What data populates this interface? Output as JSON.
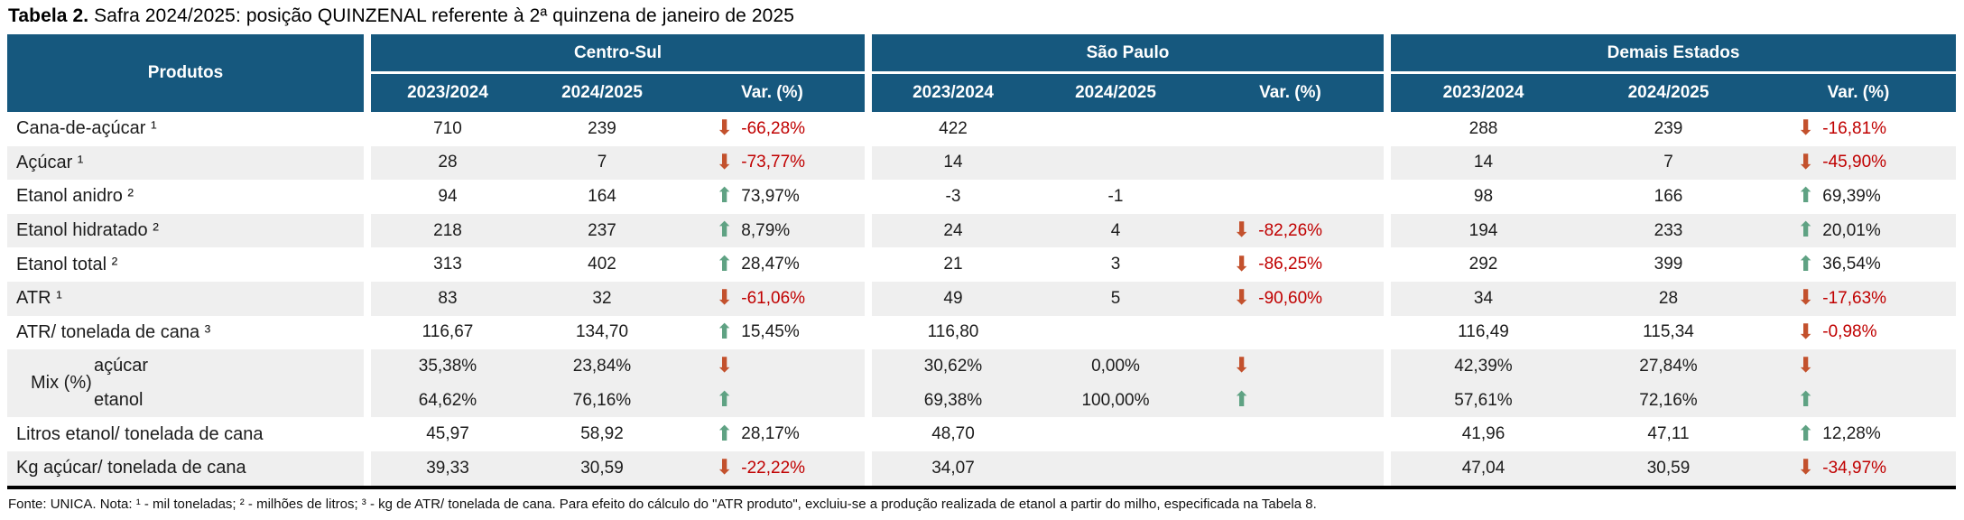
{
  "title": {
    "bold": "Tabela 2.",
    "text": " Safra 2024/2025: posição QUINZENAL referente à 2ª quinzena de janeiro de 2025"
  },
  "table": {
    "products_header": "Produtos",
    "groups": [
      {
        "name": "Centro-Sul",
        "cols": [
          "2023/2024",
          "2024/2025",
          "Var. (%)"
        ]
      },
      {
        "name": "São Paulo",
        "cols": [
          "2023/2024",
          "2024/2025",
          "Var. (%)"
        ]
      },
      {
        "name": "Demais Estados",
        "cols": [
          "2023/2024",
          "2024/2025",
          "Var. (%)"
        ]
      }
    ],
    "rows": [
      {
        "product": "Cana-de-açúcar ¹",
        "shade": false,
        "cs": {
          "y1": "710",
          "y2": "239",
          "arrow": "down",
          "var": "-66,28%"
        },
        "sp": {
          "y1": "422",
          "y2": "",
          "arrow": "",
          "var": ""
        },
        "de": {
          "y1": "288",
          "y2": "239",
          "arrow": "down",
          "var": "-16,81%"
        }
      },
      {
        "product": "Açúcar ¹",
        "shade": true,
        "cs": {
          "y1": "28",
          "y2": "7",
          "arrow": "down",
          "var": "-73,77%"
        },
        "sp": {
          "y1": "14",
          "y2": "",
          "arrow": "",
          "var": ""
        },
        "de": {
          "y1": "14",
          "y2": "7",
          "arrow": "down",
          "var": "-45,90%"
        }
      },
      {
        "product": "Etanol anidro ²",
        "shade": false,
        "cs": {
          "y1": "94",
          "y2": "164",
          "arrow": "up",
          "var": "73,97%"
        },
        "sp": {
          "y1": "-3",
          "y2": "-1",
          "arrow": "",
          "var": ""
        },
        "de": {
          "y1": "98",
          "y2": "166",
          "arrow": "up",
          "var": "69,39%"
        }
      },
      {
        "product": "Etanol hidratado ²",
        "shade": true,
        "cs": {
          "y1": "218",
          "y2": "237",
          "arrow": "up",
          "var": "8,79%"
        },
        "sp": {
          "y1": "24",
          "y2": "4",
          "arrow": "down",
          "var": "-82,26%"
        },
        "de": {
          "y1": "194",
          "y2": "233",
          "arrow": "up",
          "var": "20,01%"
        }
      },
      {
        "product": "Etanol total ²",
        "shade": false,
        "cs": {
          "y1": "313",
          "y2": "402",
          "arrow": "up",
          "var": "28,47%"
        },
        "sp": {
          "y1": "21",
          "y2": "3",
          "arrow": "down",
          "var": "-86,25%"
        },
        "de": {
          "y1": "292",
          "y2": "399",
          "arrow": "up",
          "var": "36,54%"
        }
      },
      {
        "product": "ATR ¹",
        "shade": true,
        "cs": {
          "y1": "83",
          "y2": "32",
          "arrow": "down",
          "var": "-61,06%"
        },
        "sp": {
          "y1": "49",
          "y2": "5",
          "arrow": "down",
          "var": "-90,60%"
        },
        "de": {
          "y1": "34",
          "y2": "28",
          "arrow": "down",
          "var": "-17,63%"
        }
      },
      {
        "product": "ATR/ tonelada de cana ³",
        "shade": false,
        "cs": {
          "y1": "116,67",
          "y2": "134,70",
          "arrow": "up",
          "var": "15,45%"
        },
        "sp": {
          "y1": "116,80",
          "y2": "",
          "arrow": "",
          "var": ""
        },
        "de": {
          "y1": "116,49",
          "y2": "115,34",
          "arrow": "down",
          "var": "-0,98%"
        }
      },
      {
        "product": "açúcar",
        "mix_label": "Mix (%)",
        "indent": true,
        "shade": true,
        "cs": {
          "y1": "35,38%",
          "y2": "23,84%",
          "arrow": "down",
          "var": ""
        },
        "sp": {
          "y1": "30,62%",
          "y2": "0,00%",
          "arrow": "down",
          "var": ""
        },
        "de": {
          "y1": "42,39%",
          "y2": "27,84%",
          "arrow": "down",
          "var": ""
        }
      },
      {
        "product": "etanol",
        "indent": true,
        "shade": true,
        "cs": {
          "y1": "64,62%",
          "y2": "76,16%",
          "arrow": "up",
          "var": ""
        },
        "sp": {
          "y1": "69,38%",
          "y2": "100,00%",
          "arrow": "up",
          "var": ""
        },
        "de": {
          "y1": "57,61%",
          "y2": "72,16%",
          "arrow": "up",
          "var": ""
        }
      },
      {
        "product": "Litros etanol/ tonelada de cana",
        "shade": false,
        "cs": {
          "y1": "45,97",
          "y2": "58,92",
          "arrow": "up",
          "var": "28,17%"
        },
        "sp": {
          "y1": "48,70",
          "y2": "",
          "arrow": "",
          "var": ""
        },
        "de": {
          "y1": "41,96",
          "y2": "47,11",
          "arrow": "up",
          "var": "12,28%"
        }
      },
      {
        "product": "Kg açúcar/ tonelada de cana",
        "shade": true,
        "cs": {
          "y1": "39,33",
          "y2": "30,59",
          "arrow": "down",
          "var": "-22,22%"
        },
        "sp": {
          "y1": "34,07",
          "y2": "",
          "arrow": "",
          "var": ""
        },
        "de": {
          "y1": "47,04",
          "y2": "30,59",
          "arrow": "down",
          "var": "-34,97%"
        }
      }
    ]
  },
  "footer": "Fonte: UNICA. Nota: ¹ - mil toneladas; ² - milhões de litros; ³ - kg de ATR/ tonelada de cana. Para efeito do cálculo do \"ATR produto\", excluiu-se a produção realizada de etanol a partir do milho, especificada na Tabela 8.",
  "colors": {
    "header_blue": "#16587E",
    "stripe_gray": "#EFEFEF",
    "down_arrow": "#C3512D",
    "up_arrow": "#5FA283",
    "negative_text": "#C00000",
    "bottom_border": "#000000"
  },
  "icons": {
    "down": "down-arrow-icon",
    "up": "up-arrow-icon"
  },
  "chart_data": {
    "type": "table",
    "title": "Tabela 2. Safra 2024/2025: posição QUINZENAL referente à 2ª quinzena de janeiro de 2025",
    "column_groups": [
      "Centro-Sul",
      "São Paulo",
      "Demais Estados"
    ],
    "columns": [
      "Produtos",
      "Centro-Sul 2023/2024",
      "Centro-Sul 2024/2025",
      "Centro-Sul Var. (%)",
      "São Paulo 2023/2024",
      "São Paulo 2024/2025",
      "São Paulo Var. (%)",
      "Demais Estados 2023/2024",
      "Demais Estados 2024/2025",
      "Demais Estados Var. (%)"
    ],
    "rows": [
      [
        "Cana-de-açúcar ¹",
        "710",
        "239",
        "-66,28%",
        "422",
        "",
        "",
        "288",
        "239",
        "-16,81%"
      ],
      [
        "Açúcar ¹",
        "28",
        "7",
        "-73,77%",
        "14",
        "",
        "",
        "14",
        "7",
        "-45,90%"
      ],
      [
        "Etanol anidro ²",
        "94",
        "164",
        "73,97%",
        "-3",
        "-1",
        "",
        "98",
        "166",
        "69,39%"
      ],
      [
        "Etanol hidratado ²",
        "218",
        "237",
        "8,79%",
        "24",
        "4",
        "-82,26%",
        "194",
        "233",
        "20,01%"
      ],
      [
        "Etanol total ²",
        "313",
        "402",
        "28,47%",
        "21",
        "3",
        "-86,25%",
        "292",
        "399",
        "36,54%"
      ],
      [
        "ATR ¹",
        "83",
        "32",
        "-61,06%",
        "49",
        "5",
        "-90,60%",
        "34",
        "28",
        "-17,63%"
      ],
      [
        "ATR/ tonelada de cana ³",
        "116,67",
        "134,70",
        "15,45%",
        "116,80",
        "",
        "",
        "116,49",
        "115,34",
        "-0,98%"
      ],
      [
        "Mix (%) açúcar",
        "35,38%",
        "23,84%",
        "↓",
        "30,62%",
        "0,00%",
        "↓",
        "42,39%",
        "27,84%",
        "↓"
      ],
      [
        "Mix (%) etanol",
        "64,62%",
        "76,16%",
        "↑",
        "69,38%",
        "100,00%",
        "↑",
        "57,61%",
        "72,16%",
        "↑"
      ],
      [
        "Litros etanol/ tonelada de cana",
        "45,97",
        "58,92",
        "28,17%",
        "48,70",
        "",
        "",
        "41,96",
        "47,11",
        "12,28%"
      ],
      [
        "Kg açúcar/ tonelada de cana",
        "39,33",
        "30,59",
        "-22,22%",
        "34,07",
        "",
        "",
        "47,04",
        "30,59",
        "-34,97%"
      ]
    ]
  }
}
